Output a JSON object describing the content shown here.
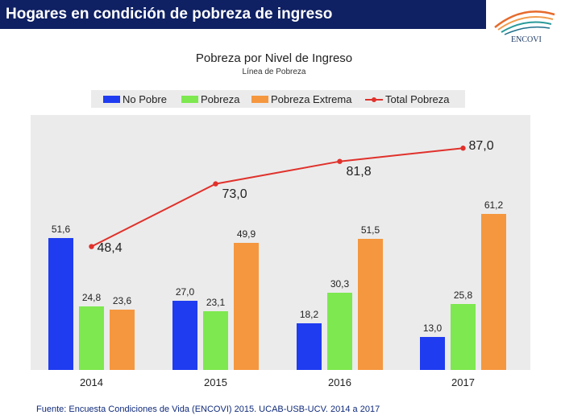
{
  "header": {
    "title": "Hogares en condición de pobreza de ingreso"
  },
  "logo": {
    "text": "ENCOVI"
  },
  "footer": {
    "source": "Fuente: Encuesta Condiciones de Vida (ENCOVI) 2015. UCAB-USB-UCV. 2014 a 2017"
  },
  "colors": {
    "banner": "#0f2063",
    "no_pobre": "#1f3cf0",
    "pobreza": "#7de84f",
    "pobreza_extrema": "#f5973e",
    "total": "#e0312b"
  },
  "chart_data": {
    "type": "bar",
    "title": "Pobreza por Nivel de Ingreso",
    "subtitle": "Línea de Pobreza",
    "categories": [
      "2014",
      "2015",
      "2016",
      "2017"
    ],
    "ylim": [
      0,
      100
    ],
    "legend_position": "top",
    "series": [
      {
        "name": "No Pobre",
        "values": [
          51.6,
          27.0,
          18.2,
          13.0
        ],
        "labels": [
          "51,6",
          "27,0",
          "18,2",
          "13,0"
        ]
      },
      {
        "name": "Pobreza",
        "values": [
          24.8,
          23.1,
          30.3,
          25.8
        ],
        "labels": [
          "24,8",
          "23,1",
          "30,3",
          "25,8"
        ]
      },
      {
        "name": "Pobreza Extrema",
        "values": [
          23.6,
          49.9,
          51.5,
          61.2
        ],
        "labels": [
          "23,6",
          "49,9",
          "51,5",
          "61,2"
        ]
      }
    ],
    "line": {
      "name": "Total Pobreza",
      "type": "line",
      "values": [
        48.4,
        73.0,
        81.8,
        87.0
      ],
      "labels": [
        "48,4",
        "73,0",
        "81,8",
        "87,0"
      ]
    }
  }
}
